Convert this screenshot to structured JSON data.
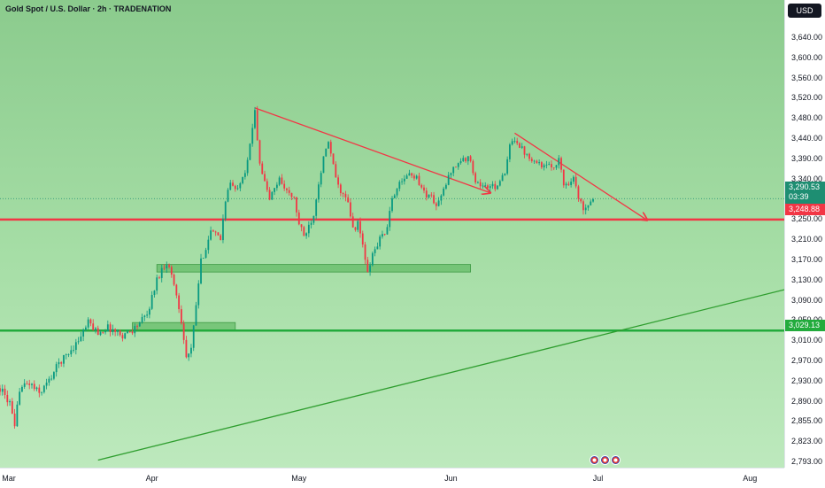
{
  "header": {
    "title": "Gold Spot / U.S. Dollar · 2h · TRADENATION"
  },
  "toolbar": {
    "currency_button": "USD"
  },
  "price_labels": {
    "current_price": "3,290.53",
    "countdown": "03:39",
    "resistance": "3,248.88",
    "support": "3,029.13"
  },
  "event_icons": [
    "us-flag-icon",
    "us-flag-icon",
    "us-flag-icon"
  ],
  "colors": {
    "background": "#9fd79f",
    "up_candle": "#089981",
    "down_candle": "#f23645",
    "resistance_line": "#f23645",
    "support_line": "#22ab3c",
    "trendline_red": "#f23645",
    "trendline_green": "#2f9e2f",
    "zone_fill": "#4caf50"
  },
  "chart_data": {
    "type": "candlestick",
    "symbol": "Gold Spot / U.S. Dollar",
    "interval": "2h",
    "title": "Gold Spot / U.S. Dollar · 2h · TRADENATION",
    "x_ticks": [
      "Mar",
      "Apr",
      "May",
      "Jun",
      "Jul",
      "Aug"
    ],
    "x_range": [
      "2025-03-01",
      "2025-08-08"
    ],
    "y_ticks": [
      2793,
      2823,
      2855,
      2890,
      2930,
      2970,
      3010,
      3050,
      3090,
      3130,
      3170,
      3210,
      3250,
      3290,
      3340,
      3390,
      3440,
      3480,
      3520,
      3560,
      3600,
      3640
    ],
    "y_tick_labels": [
      "2,793.00",
      "2,823.00",
      "2,855.00",
      "2,890.00",
      "2,930.00",
      "2,970.00",
      "3,010.00",
      "3,050.00",
      "3,090.00",
      "3,130.00",
      "3,170.00",
      "3,210.00",
      "3,250.00",
      "3,290.00",
      "3,340.00",
      "3,390.00",
      "3,440.00",
      "3,480.00",
      "3,520.00",
      "3,560.00",
      "3,600.00",
      "3,640.00"
    ],
    "price_path": [
      [
        "2025-03-01",
        2915
      ],
      [
        "2025-03-03",
        2885
      ],
      [
        "2025-03-04",
        2840
      ],
      [
        "2025-03-05",
        2915
      ],
      [
        "2025-03-07",
        2925
      ],
      [
        "2025-03-09",
        2905
      ],
      [
        "2025-03-11",
        2930
      ],
      [
        "2025-03-13",
        2965
      ],
      [
        "2025-03-15",
        2985
      ],
      [
        "2025-03-17",
        3010
      ],
      [
        "2025-03-19",
        3045
      ],
      [
        "2025-03-21",
        3025
      ],
      [
        "2025-03-23",
        3035
      ],
      [
        "2025-03-26",
        3020
      ],
      [
        "2025-03-28",
        3030
      ],
      [
        "2025-03-31",
        3060
      ],
      [
        "2025-04-02",
        3130
      ],
      [
        "2025-04-03",
        3150
      ],
      [
        "2025-04-04",
        3165
      ],
      [
        "2025-04-05",
        3140
      ],
      [
        "2025-04-06",
        3100
      ],
      [
        "2025-04-07",
        3050
      ],
      [
        "2025-04-08",
        2975
      ],
      [
        "2025-04-09",
        2990
      ],
      [
        "2025-04-10",
        3080
      ],
      [
        "2025-04-11",
        3165
      ],
      [
        "2025-04-13",
        3225
      ],
      [
        "2025-04-15",
        3210
      ],
      [
        "2025-04-16",
        3290
      ],
      [
        "2025-04-17",
        3330
      ],
      [
        "2025-04-18",
        3310
      ],
      [
        "2025-04-20",
        3360
      ],
      [
        "2025-04-21",
        3420
      ],
      [
        "2025-04-22",
        3500
      ],
      [
        "2025-04-23",
        3380
      ],
      [
        "2025-04-24",
        3330
      ],
      [
        "2025-04-25",
        3290
      ],
      [
        "2025-04-27",
        3340
      ],
      [
        "2025-04-29",
        3300
      ],
      [
        "2025-04-30",
        3290
      ],
      [
        "2025-05-01",
        3240
      ],
      [
        "2025-05-02",
        3215
      ],
      [
        "2025-05-04",
        3260
      ],
      [
        "2025-05-05",
        3330
      ],
      [
        "2025-05-06",
        3390
      ],
      [
        "2025-05-07",
        3430
      ],
      [
        "2025-05-08",
        3370
      ],
      [
        "2025-05-09",
        3320
      ],
      [
        "2025-05-11",
        3280
      ],
      [
        "2025-05-12",
        3230
      ],
      [
        "2025-05-13",
        3240
      ],
      [
        "2025-05-14",
        3200
      ],
      [
        "2025-05-15",
        3140
      ],
      [
        "2025-05-16",
        3180
      ],
      [
        "2025-05-18",
        3220
      ],
      [
        "2025-05-19",
        3230
      ],
      [
        "2025-05-20",
        3290
      ],
      [
        "2025-05-21",
        3320
      ],
      [
        "2025-05-22",
        3330
      ],
      [
        "2025-05-23",
        3350
      ],
      [
        "2025-05-25",
        3345
      ],
      [
        "2025-05-26",
        3315
      ],
      [
        "2025-05-27",
        3300
      ],
      [
        "2025-05-28",
        3295
      ],
      [
        "2025-05-29",
        3275
      ],
      [
        "2025-05-30",
        3295
      ],
      [
        "2025-06-01",
        3360
      ],
      [
        "2025-06-03",
        3385
      ],
      [
        "2025-06-05",
        3390
      ],
      [
        "2025-06-06",
        3330
      ],
      [
        "2025-06-08",
        3320
      ],
      [
        "2025-06-10",
        3320
      ],
      [
        "2025-06-12",
        3350
      ],
      [
        "2025-06-13",
        3420
      ],
      [
        "2025-06-14",
        3440
      ],
      [
        "2025-06-16",
        3405
      ],
      [
        "2025-06-18",
        3385
      ],
      [
        "2025-06-20",
        3370
      ],
      [
        "2025-06-22",
        3370
      ],
      [
        "2025-06-23",
        3390
      ],
      [
        "2025-06-24",
        3325
      ],
      [
        "2025-06-25",
        3330
      ],
      [
        "2025-06-26",
        3345
      ],
      [
        "2025-06-27",
        3290
      ],
      [
        "2025-06-28",
        3272
      ],
      [
        "2025-06-29",
        3282
      ],
      [
        "2025-06-30",
        3292
      ]
    ],
    "horizontal_lines": [
      {
        "price": 3248.88,
        "label": "3,248.88",
        "color": "#f23645"
      },
      {
        "price": 3029.13,
        "label": "3,029.13",
        "color": "#22ab3c"
      }
    ],
    "current_price": 3290.53,
    "zones": [
      {
        "x_start": "2025-04-02",
        "x_end": "2025-06-05",
        "y_low": 3145,
        "y_high": 3160
      },
      {
        "x_start": "2025-03-28",
        "x_end": "2025-04-18",
        "y_low": 3030,
        "y_high": 3045
      }
    ],
    "trendlines": [
      {
        "color": "#f23645",
        "from": [
          "2025-04-22",
          3500
        ],
        "to": [
          "2025-06-09",
          3305
        ],
        "arrow": true
      },
      {
        "color": "#f23645",
        "from": [
          "2025-06-14",
          3450
        ],
        "to": [
          "2025-07-11",
          3248
        ],
        "arrow": true
      },
      {
        "color": "#2f9e2f",
        "from": [
          "2025-03-21",
          2795
        ],
        "to": [
          "2025-08-08",
          3110
        ],
        "arrow": false
      }
    ]
  }
}
